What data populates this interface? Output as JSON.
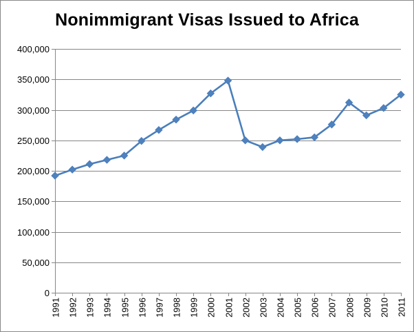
{
  "chart_data": {
    "type": "line",
    "title": "Nonimmigrant  Visas Issued to Africa",
    "xlabel": "",
    "ylabel": "",
    "x": [
      "1991",
      "1992",
      "1993",
      "1994",
      "1995",
      "1996",
      "1997",
      "1998",
      "1999",
      "2000",
      "2001",
      "2002",
      "2003",
      "2004",
      "2005",
      "2006",
      "2007",
      "2008",
      "2009",
      "2010",
      "2011"
    ],
    "series": [
      {
        "values": [
          192000,
          202000,
          211000,
          218000,
          225000,
          249000,
          267000,
          284000,
          299000,
          327000,
          348000,
          250000,
          239000,
          250000,
          252000,
          255000,
          276000,
          312000,
          291000,
          303000,
          325000
        ]
      }
    ],
    "ylim": [
      0,
      400000
    ],
    "y_ticks": [
      0,
      50000,
      100000,
      150000,
      200000,
      250000,
      300000,
      350000,
      400000
    ],
    "y_tick_labels": [
      "0",
      "50,000",
      "100,000",
      "150,000",
      "200,000",
      "250,000",
      "300,000",
      "350,000",
      "400,000"
    ],
    "grid": true,
    "legend": "none",
    "marker": "diamond",
    "colors": {
      "series": "#4a7ebb",
      "marker": "#4f81bd",
      "grid": "#868686",
      "axis": "#868686"
    }
  }
}
